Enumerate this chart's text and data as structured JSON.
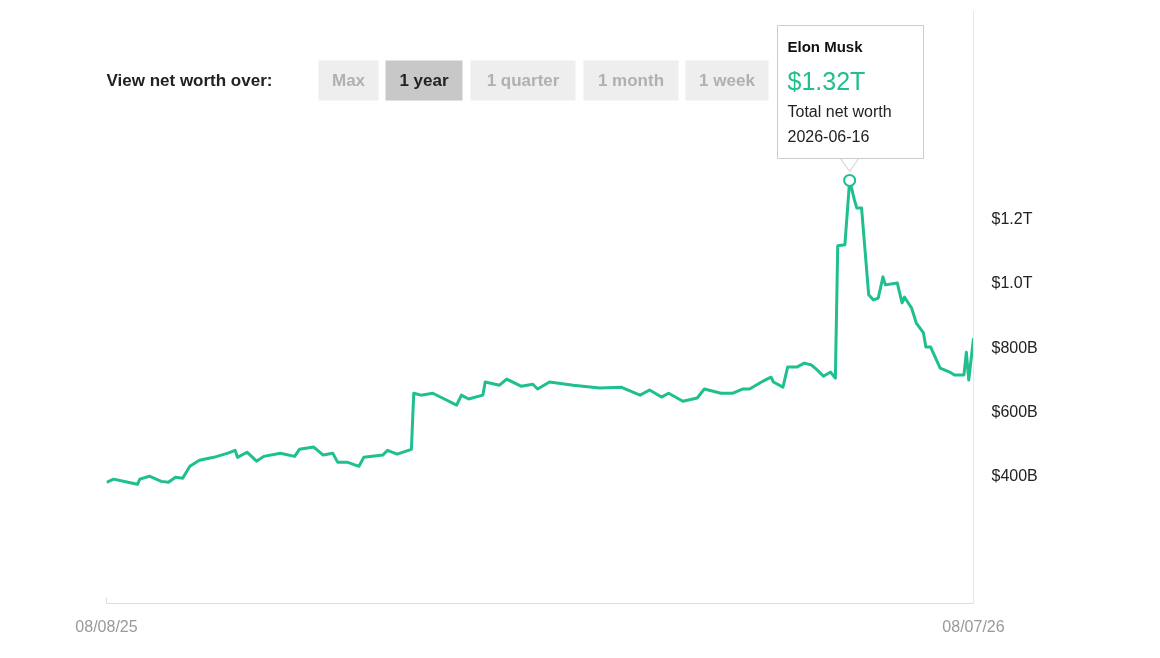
{
  "chart_data": {
    "type": "line",
    "title": "View net worth over:",
    "annotations": [
      "Max",
      "1 year",
      "1 quarter",
      "1 month",
      "1 week",
      {
        "text": "Elon Musk\n$1.32T\nTotal net worth\n2026-06-16",
        "x": "2026-06-16",
        "y": 1320000000000.0
      }
    ],
    "xlim": [
      "2025-08-08",
      "2026-08-07"
    ],
    "ylim": [
      0,
      1850000000000.0
    ],
    "xticks": [
      {
        "value": "2025-08-08",
        "label": "08/08/25"
      },
      {
        "value": "2026-08-07",
        "label": "08/07/26"
      }
    ],
    "yticks": [
      {
        "value": 400000000000.0,
        "label": "$400B"
      },
      {
        "value": 600000000000.0,
        "label": "$600B"
      },
      {
        "value": 800000000000.0,
        "label": "$800B"
      },
      {
        "value": 1000000000000.0,
        "label": "$1.0T"
      },
      {
        "value": 1200000000000.0,
        "label": "$1.2T"
      }
    ],
    "x": [
      "2025-08-08",
      "2025-08-11",
      "2025-08-17",
      "2025-08-21",
      "2025-08-22",
      "2025-08-26",
      "2025-08-31",
      "2025-09-03",
      "2025-09-06",
      "2025-09-09",
      "2025-09-12",
      "2025-09-16",
      "2025-09-22",
      "2025-09-28",
      "2025-10-01",
      "2025-10-02",
      "2025-10-06",
      "2025-10-10",
      "2025-10-13",
      "2025-10-20",
      "2025-10-26",
      "2025-10-28",
      "2025-11-03",
      "2025-11-07",
      "2025-11-11",
      "2025-11-13",
      "2025-11-17",
      "2025-11-22",
      "2025-11-24",
      "2025-12-02",
      "2025-12-04",
      "2025-12-08",
      "2025-12-14",
      "2025-12-15",
      "2025-12-18",
      "2025-12-23",
      "2025-12-27",
      "2026-01-02",
      "2026-01-04",
      "2026-01-07",
      "2026-01-13",
      "2026-01-14",
      "2026-01-20",
      "2026-01-23",
      "2026-01-29",
      "2026-02-03",
      "2026-02-05",
      "2026-02-10",
      "2026-02-20",
      "2026-03-03",
      "2026-03-12",
      "2026-03-20",
      "2026-03-24",
      "2026-03-29",
      "2026-04-01",
      "2026-04-07",
      "2026-04-13",
      "2026-04-16",
      "2026-04-23",
      "2026-04-28",
      "2026-05-02",
      "2026-05-05",
      "2026-05-10",
      "2026-05-14",
      "2026-05-15",
      "2026-05-19",
      "2026-05-21",
      "2026-05-25",
      "2026-05-28",
      "2026-05-31",
      "2026-06-02",
      "2026-06-05",
      "2026-06-08",
      "2026-06-10",
      "2026-06-11",
      "2026-06-14",
      "2026-06-16",
      "2026-06-18",
      "2026-06-19",
      "2026-06-21",
      "2026-06-24",
      "2026-06-26",
      "2026-06-28",
      "2026-06-30",
      "2026-07-01",
      "2026-07-06",
      "2026-07-08",
      "2026-07-09",
      "2026-07-12",
      "2026-07-14",
      "2026-07-17",
      "2026-07-18",
      "2026-07-20",
      "2026-07-24",
      "2026-07-28",
      "2026-07-30",
      "2026-08-03",
      "2026-08-04",
      "2026-08-05",
      "2026-08-07"
    ],
    "series": [
      {
        "color": "#1fbf8f",
        "values": [
          378000000000.0,
          388000000000.0,
          378000000000.0,
          372000000000.0,
          388000000000.0,
          397000000000.0,
          381000000000.0,
          378000000000.0,
          394000000000.0,
          391000000000.0,
          428000000000.0,
          447000000000.0,
          456000000000.0,
          469000000000.0,
          478000000000.0,
          456000000000.0,
          472000000000.0,
          444000000000.0,
          459000000000.0,
          469000000000.0,
          459000000000.0,
          481000000000.0,
          488000000000.0,
          463000000000.0,
          469000000000.0,
          441000000000.0,
          441000000000.0,
          428000000000.0,
          456000000000.0,
          463000000000.0,
          478000000000.0,
          466000000000.0,
          481000000000.0,
          656000000000.0,
          650000000000.0,
          656000000000.0,
          641000000000.0,
          619000000000.0,
          650000000000.0,
          638000000000.0,
          650000000000.0,
          691000000000.0,
          681000000000.0,
          700000000000.0,
          678000000000.0,
          684000000000.0,
          669000000000.0,
          691000000000.0,
          681000000000.0,
          672000000000.0,
          675000000000.0,
          650000000000.0,
          666000000000.0,
          644000000000.0,
          656000000000.0,
          631000000000.0,
          641000000000.0,
          669000000000.0,
          656000000000.0,
          656000000000.0,
          669000000000.0,
          669000000000.0,
          691000000000.0,
          706000000000.0,
          691000000000.0,
          675000000000.0,
          738000000000.0,
          738000000000.0,
          750000000000.0,
          744000000000.0,
          731000000000.0,
          709000000000.0,
          722000000000.0,
          703000000000.0,
          1116000000000.0,
          1119000000000.0,
          1320000000000.0,
          1259000000000.0,
          1234000000000.0,
          1234000000000.0,
          963000000000.0,
          947000000000.0,
          953000000000.0,
          1019000000000.0,
          994000000000.0,
          1000000000000.0,
          938000000000.0,
          956000000000.0,
          922000000000.0,
          875000000000.0,
          844000000000.0,
          800000000000.0,
          800000000000.0,
          734000000000.0,
          722000000000.0,
          713000000000.0,
          713000000000.0,
          784000000000.0,
          697000000000.0,
          828000000000.0
        ]
      }
    ]
  }
}
